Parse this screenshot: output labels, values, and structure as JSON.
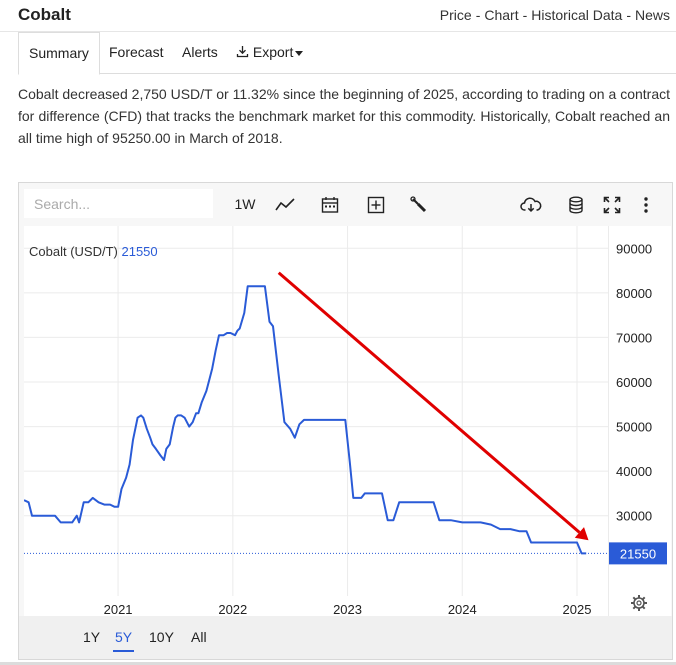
{
  "header": {
    "brand": "Cobalt",
    "links": [
      "Price",
      "Chart",
      "Historical Data",
      "News"
    ],
    "separator": "-"
  },
  "tabs": {
    "summary": "Summary",
    "forecast": "Forecast",
    "alerts": "Alerts",
    "export": "Export"
  },
  "description": "Cobalt decreased 2,750 USD/T or 11.32% since the beginning of 2025, according to trading on a contract for difference (CFD) that tracks the benchmark market for this commodity. Historically, Cobalt reached an all time high of 95250.00 in March of 2018.",
  "toolbar": {
    "search_placeholder": "Search...",
    "interval_label": "1W",
    "icons": [
      "line-chart-icon",
      "calendar-icon",
      "plus-square-icon",
      "wrench-icon",
      "cloud-download-icon",
      "database-icon",
      "fullscreen-icon",
      "more-vertical-icon"
    ]
  },
  "range": {
    "buttons": [
      "1Y",
      "5Y",
      "10Y",
      "All"
    ],
    "active": "5Y"
  },
  "colors": {
    "line": "#2a5bd7",
    "arrow": "#e00000",
    "active": "#2a5bd7"
  },
  "chart_data": {
    "type": "line",
    "legend_name": "Cobalt (USD/T)",
    "last_value": 21550,
    "last_value_label": "21550",
    "ylim": [
      7500,
      95000
    ],
    "y_ticks": [
      30000,
      40000,
      50000,
      60000,
      70000,
      80000,
      90000
    ],
    "y_tick_labels": [
      "30000",
      "40000",
      "50000",
      "60000",
      "70000",
      "80000",
      "90000"
    ],
    "x_ticks": [
      2021,
      2022,
      2023,
      2024,
      2025
    ],
    "x_tick_labels": [
      "2021",
      "2022",
      "2023",
      "2024",
      "2025"
    ],
    "xlim": [
      2020.18,
      2025.27
    ],
    "grid": true,
    "series": [
      {
        "x": [
          2020.18,
          2020.22,
          2020.25,
          2020.3,
          2020.45,
          2020.5,
          2020.55,
          2020.6,
          2020.64,
          2020.66,
          2020.7,
          2020.74,
          2020.78,
          2020.83,
          2020.88,
          2020.93,
          2020.97,
          2021.0,
          2021.03,
          2021.07,
          2021.1,
          2021.13,
          2021.17,
          2021.2,
          2021.22,
          2021.25,
          2021.28,
          2021.3,
          2021.33,
          2021.37,
          2021.4,
          2021.42,
          2021.45,
          2021.48,
          2021.5,
          2021.52,
          2021.55,
          2021.58,
          2021.62,
          2021.65,
          2021.68,
          2021.7,
          2021.73,
          2021.77,
          2021.8,
          2021.82,
          2021.85,
          2021.88,
          2021.92,
          2021.95,
          2021.98,
          2022.02,
          2022.04,
          2022.06,
          2022.1,
          2022.13,
          2022.17,
          2022.21,
          2022.28,
          2022.32,
          2022.35,
          2022.4,
          2022.45,
          2022.5,
          2022.54,
          2022.58,
          2022.62,
          2022.66,
          2022.7,
          2022.74,
          2022.78,
          2022.82,
          2022.86,
          2022.9,
          2022.94,
          2022.98,
          2023.02,
          2023.05,
          2023.08,
          2023.12,
          2023.15,
          2023.2,
          2023.25,
          2023.3,
          2023.35,
          2023.4,
          2023.45,
          2023.5,
          2023.6,
          2023.7,
          2023.75,
          2023.8,
          2023.9,
          2024.0,
          2024.08,
          2024.16,
          2024.25,
          2024.33,
          2024.42,
          2024.5,
          2024.56,
          2024.6,
          2024.65,
          2024.75,
          2024.85,
          2024.95,
          2025.0,
          2025.04,
          2025.08
        ],
        "y": [
          33500,
          33000,
          30000,
          30000,
          30000,
          28500,
          28500,
          28500,
          30000,
          28500,
          33000,
          33000,
          34000,
          33000,
          32500,
          32500,
          32000,
          32000,
          36000,
          38500,
          41500,
          47000,
          52000,
          52500,
          52000,
          49500,
          47500,
          46000,
          45000,
          43500,
          42500,
          45000,
          46000,
          50000,
          52000,
          52500,
          52500,
          52000,
          50000,
          51000,
          53000,
          53000,
          55500,
          58000,
          61000,
          63000,
          67000,
          70500,
          70500,
          71000,
          71000,
          70500,
          71500,
          72000,
          75500,
          81500,
          81500,
          81500,
          81500,
          73500,
          72500,
          61500,
          51000,
          49500,
          47500,
          50500,
          51500,
          51500,
          51500,
          51500,
          51500,
          51500,
          51500,
          51500,
          51500,
          51500,
          42000,
          34000,
          34000,
          34000,
          35000,
          35000,
          35000,
          35000,
          29000,
          29000,
          33000,
          33000,
          33000,
          33000,
          33000,
          29000,
          29000,
          28500,
          28500,
          28500,
          28000,
          27000,
          27000,
          26500,
          26500,
          24000,
          24000,
          24000,
          24000,
          24000,
          24000,
          21550,
          21550
        ]
      }
    ],
    "annotations": [
      {
        "type": "arrow",
        "x1": 2022.4,
        "y1": 84500,
        "x2": 2025.1,
        "y2": 24500
      }
    ]
  }
}
